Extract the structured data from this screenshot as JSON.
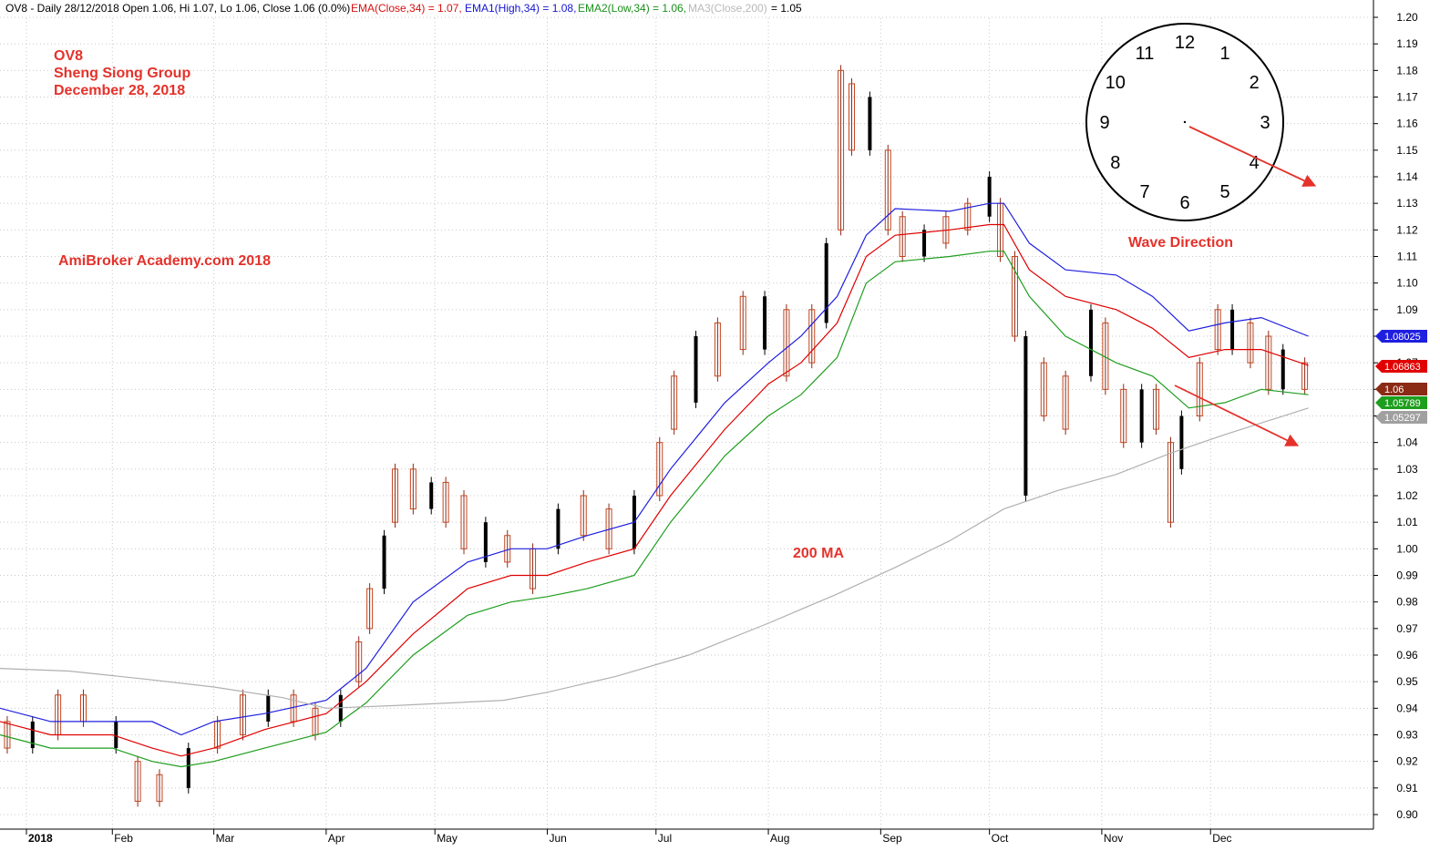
{
  "header": {
    "symbol_info": "OV8 - Daily 28/12/2018 Open 1.06, Hi 1.07, Lo 1.06, Close 1.06 (0.0%)",
    "ema_close": "EMA(Close,34) = 1.07,",
    "ema1_high": "EMA1(High,34) = 1.08,",
    "ema2_low": "EMA2(Low,34) = 1.06,",
    "ma3_close": "MA3(Close,200)",
    "ma3_value": "= 1.05"
  },
  "notes": {
    "ticker": "OV8",
    "company": "Sheng Siong Group",
    "date": "December 28, 2018",
    "watermark": "AmiBroker Academy.com  2018",
    "ma_label": "200 MA",
    "wave_label": "Wave Direction"
  },
  "clock": {
    "numbers": [
      "12",
      "1",
      "2",
      "3",
      "4",
      "5",
      "6",
      "7",
      "8",
      "9",
      "10",
      "11"
    ]
  },
  "badges": [
    {
      "text": "1.08025",
      "value": 1.08025,
      "color": "#1f1fe0"
    },
    {
      "text": "1.06863",
      "value": 1.06863,
      "color": "#e00000"
    },
    {
      "text": "1.06",
      "value": 1.06,
      "color": "#8b2a15"
    },
    {
      "text": "1.05789",
      "value": 1.05789,
      "color": "#1e9e1e"
    },
    {
      "text": "1.05297",
      "value": 1.05297,
      "color": "#a0a0a0"
    }
  ],
  "chart_data": {
    "type": "line",
    "y_axis": {
      "min": 0.9,
      "max": 1.2,
      "position": "right",
      "ticks": [
        "0.90",
        "0.91",
        "0.92",
        "0.93",
        "0.94",
        "0.95",
        "0.96",
        "0.97",
        "0.98",
        "0.99",
        "1.00",
        "1.01",
        "1.02",
        "1.03",
        "1.04",
        "1.05",
        "1.06",
        "1.07",
        "1.08",
        "1.09",
        "1.10",
        "1.11",
        "1.12",
        "1.13",
        "1.14",
        "1.15",
        "1.16",
        "1.17",
        "1.18",
        "1.19",
        "1.20"
      ]
    },
    "x_axis": {
      "start": "2018-01-01",
      "end": "2019-01-22",
      "months": [
        {
          "label": "2018",
          "date": "2018-01-01",
          "bold": true
        },
        {
          "label": "Feb",
          "date": "2018-02-01"
        },
        {
          "label": "Mar",
          "date": "2018-03-01"
        },
        {
          "label": "Apr",
          "date": "2018-04-01"
        },
        {
          "label": "May",
          "date": "2018-05-01"
        },
        {
          "label": "Jun",
          "date": "2018-06-01"
        },
        {
          "label": "Jul",
          "date": "2018-07-01"
        },
        {
          "label": "Aug",
          "date": "2018-08-01"
        },
        {
          "label": "Sep",
          "date": "2018-09-01"
        },
        {
          "label": "Oct",
          "date": "2018-10-01"
        },
        {
          "label": "Nov",
          "date": "2018-11-01"
        },
        {
          "label": "Dec",
          "date": "2018-12-01"
        }
      ]
    },
    "grid": true,
    "series": [
      {
        "name": "EMA1(High,34)",
        "color": "#1f1fe0",
        "points": [
          [
            "2018-01-01",
            0.94
          ],
          [
            "2018-01-15",
            0.935
          ],
          [
            "2018-02-01",
            0.935
          ],
          [
            "2018-02-12",
            0.935
          ],
          [
            "2018-02-20",
            0.93
          ],
          [
            "2018-03-01",
            0.935
          ],
          [
            "2018-03-15",
            0.938
          ],
          [
            "2018-04-01",
            0.943
          ],
          [
            "2018-04-12",
            0.955
          ],
          [
            "2018-04-25",
            0.98
          ],
          [
            "2018-05-10",
            0.995
          ],
          [
            "2018-05-22",
            1.0
          ],
          [
            "2018-06-01",
            1.0
          ],
          [
            "2018-06-12",
            1.005
          ],
          [
            "2018-06-25",
            1.01
          ],
          [
            "2018-07-05",
            1.03
          ],
          [
            "2018-07-20",
            1.055
          ],
          [
            "2018-08-01",
            1.07
          ],
          [
            "2018-08-10",
            1.08
          ],
          [
            "2018-08-20",
            1.095
          ],
          [
            "2018-08-28",
            1.118
          ],
          [
            "2018-09-05",
            1.128
          ],
          [
            "2018-09-20",
            1.127
          ],
          [
            "2018-10-01",
            1.13
          ],
          [
            "2018-10-05",
            1.13
          ],
          [
            "2018-10-12",
            1.115
          ],
          [
            "2018-10-22",
            1.105
          ],
          [
            "2018-11-05",
            1.103
          ],
          [
            "2018-11-15",
            1.095
          ],
          [
            "2018-11-25",
            1.082
          ],
          [
            "2018-12-05",
            1.085
          ],
          [
            "2018-12-15",
            1.087
          ],
          [
            "2018-12-28",
            1.08
          ]
        ]
      },
      {
        "name": "EMA(Close,34)",
        "color": "#e00000",
        "points": [
          [
            "2018-01-01",
            0.935
          ],
          [
            "2018-01-15",
            0.93
          ],
          [
            "2018-02-01",
            0.93
          ],
          [
            "2018-02-12",
            0.925
          ],
          [
            "2018-02-20",
            0.922
          ],
          [
            "2018-03-01",
            0.925
          ],
          [
            "2018-03-15",
            0.932
          ],
          [
            "2018-04-01",
            0.938
          ],
          [
            "2018-04-12",
            0.95
          ],
          [
            "2018-04-25",
            0.968
          ],
          [
            "2018-05-10",
            0.985
          ],
          [
            "2018-05-22",
            0.99
          ],
          [
            "2018-06-01",
            0.99
          ],
          [
            "2018-06-12",
            0.995
          ],
          [
            "2018-06-25",
            1.0
          ],
          [
            "2018-07-05",
            1.02
          ],
          [
            "2018-07-20",
            1.045
          ],
          [
            "2018-08-01",
            1.062
          ],
          [
            "2018-08-10",
            1.07
          ],
          [
            "2018-08-20",
            1.085
          ],
          [
            "2018-08-28",
            1.11
          ],
          [
            "2018-09-05",
            1.118
          ],
          [
            "2018-09-20",
            1.12
          ],
          [
            "2018-10-01",
            1.122
          ],
          [
            "2018-10-05",
            1.122
          ],
          [
            "2018-10-12",
            1.105
          ],
          [
            "2018-10-22",
            1.095
          ],
          [
            "2018-11-05",
            1.09
          ],
          [
            "2018-11-15",
            1.083
          ],
          [
            "2018-11-25",
            1.072
          ],
          [
            "2018-12-05",
            1.075
          ],
          [
            "2018-12-15",
            1.075
          ],
          [
            "2018-12-28",
            1.069
          ]
        ]
      },
      {
        "name": "EMA2(Low,34)",
        "color": "#1e9e1e",
        "points": [
          [
            "2018-01-01",
            0.93
          ],
          [
            "2018-01-15",
            0.925
          ],
          [
            "2018-02-01",
            0.925
          ],
          [
            "2018-02-12",
            0.92
          ],
          [
            "2018-02-20",
            0.918
          ],
          [
            "2018-03-01",
            0.92
          ],
          [
            "2018-03-15",
            0.925
          ],
          [
            "2018-04-01",
            0.931
          ],
          [
            "2018-04-12",
            0.942
          ],
          [
            "2018-04-25",
            0.96
          ],
          [
            "2018-05-10",
            0.975
          ],
          [
            "2018-05-22",
            0.98
          ],
          [
            "2018-06-01",
            0.982
          ],
          [
            "2018-06-12",
            0.985
          ],
          [
            "2018-06-25",
            0.99
          ],
          [
            "2018-07-05",
            1.01
          ],
          [
            "2018-07-20",
            1.035
          ],
          [
            "2018-08-01",
            1.05
          ],
          [
            "2018-08-10",
            1.058
          ],
          [
            "2018-08-20",
            1.072
          ],
          [
            "2018-08-28",
            1.1
          ],
          [
            "2018-09-05",
            1.108
          ],
          [
            "2018-09-20",
            1.11
          ],
          [
            "2018-10-01",
            1.112
          ],
          [
            "2018-10-05",
            1.112
          ],
          [
            "2018-10-12",
            1.095
          ],
          [
            "2018-10-22",
            1.08
          ],
          [
            "2018-11-05",
            1.07
          ],
          [
            "2018-11-15",
            1.065
          ],
          [
            "2018-11-25",
            1.053
          ],
          [
            "2018-12-05",
            1.055
          ],
          [
            "2018-12-15",
            1.06
          ],
          [
            "2018-12-28",
            1.058
          ]
        ]
      },
      {
        "name": "MA3(Close,200)",
        "color": "#b0b0b0",
        "points": [
          [
            "2018-01-01",
            0.955
          ],
          [
            "2018-01-20",
            0.954
          ],
          [
            "2018-02-10",
            0.951
          ],
          [
            "2018-03-01",
            0.948
          ],
          [
            "2018-03-20",
            0.944
          ],
          [
            "2018-04-01",
            0.94
          ],
          [
            "2018-04-20",
            0.941
          ],
          [
            "2018-05-20",
            0.943
          ],
          [
            "2018-06-01",
            0.946
          ],
          [
            "2018-06-20",
            0.952
          ],
          [
            "2018-07-10",
            0.96
          ],
          [
            "2018-08-01",
            0.972
          ],
          [
            "2018-08-20",
            0.983
          ],
          [
            "2018-09-05",
            0.993
          ],
          [
            "2018-09-20",
            1.003
          ],
          [
            "2018-10-05",
            1.015
          ],
          [
            "2018-10-20",
            1.022
          ],
          [
            "2018-11-05",
            1.028
          ],
          [
            "2018-11-20",
            1.036
          ],
          [
            "2018-12-05",
            1.043
          ],
          [
            "2018-12-28",
            1.053
          ]
        ]
      }
    ],
    "price_bars": [
      [
        "2018-01-03",
        0.935,
        0.925
      ],
      [
        "2018-01-10",
        0.935,
        0.925
      ],
      [
        "2018-01-17",
        0.945,
        0.93
      ],
      [
        "2018-01-24",
        0.945,
        0.935
      ],
      [
        "2018-02-02",
        0.935,
        0.925
      ],
      [
        "2018-02-08",
        0.92,
        0.905
      ],
      [
        "2018-02-14",
        0.915,
        0.905
      ],
      [
        "2018-02-22",
        0.925,
        0.91
      ],
      [
        "2018-03-02",
        0.935,
        0.925
      ],
      [
        "2018-03-09",
        0.945,
        0.93
      ],
      [
        "2018-03-16",
        0.945,
        0.935
      ],
      [
        "2018-03-23",
        0.945,
        0.935
      ],
      [
        "2018-03-29",
        0.94,
        0.93
      ],
      [
        "2018-04-05",
        0.945,
        0.935
      ],
      [
        "2018-04-10",
        0.965,
        0.95
      ],
      [
        "2018-04-13",
        0.985,
        0.97
      ],
      [
        "2018-04-17",
        1.005,
        0.985
      ],
      [
        "2018-04-20",
        1.03,
        1.01
      ],
      [
        "2018-04-25",
        1.03,
        1.015
      ],
      [
        "2018-04-30",
        1.025,
        1.015
      ],
      [
        "2018-05-04",
        1.025,
        1.01
      ],
      [
        "2018-05-09",
        1.02,
        1.0
      ],
      [
        "2018-05-15",
        1.01,
        0.995
      ],
      [
        "2018-05-21",
        1.005,
        0.995
      ],
      [
        "2018-05-28",
        1.0,
        0.985
      ],
      [
        "2018-06-04",
        1.015,
        1.0
      ],
      [
        "2018-06-11",
        1.02,
        1.005
      ],
      [
        "2018-06-18",
        1.015,
        1.0
      ],
      [
        "2018-06-25",
        1.02,
        1.0
      ],
      [
        "2018-07-02",
        1.04,
        1.02
      ],
      [
        "2018-07-06",
        1.065,
        1.045
      ],
      [
        "2018-07-12",
        1.08,
        1.055
      ],
      [
        "2018-07-18",
        1.085,
        1.065
      ],
      [
        "2018-07-25",
        1.095,
        1.075
      ],
      [
        "2018-07-31",
        1.095,
        1.075
      ],
      [
        "2018-08-06",
        1.09,
        1.065
      ],
      [
        "2018-08-13",
        1.09,
        1.07
      ],
      [
        "2018-08-17",
        1.115,
        1.085
      ],
      [
        "2018-08-21",
        1.18,
        1.12
      ],
      [
        "2018-08-24",
        1.175,
        1.15
      ],
      [
        "2018-08-29",
        1.17,
        1.15
      ],
      [
        "2018-09-03",
        1.15,
        1.12
      ],
      [
        "2018-09-07",
        1.125,
        1.11
      ],
      [
        "2018-09-13",
        1.12,
        1.11
      ],
      [
        "2018-09-19",
        1.125,
        1.115
      ],
      [
        "2018-09-25",
        1.13,
        1.12
      ],
      [
        "2018-10-01",
        1.14,
        1.125
      ],
      [
        "2018-10-04",
        1.13,
        1.11
      ],
      [
        "2018-10-08",
        1.11,
        1.08
      ],
      [
        "2018-10-11",
        1.08,
        1.02
      ],
      [
        "2018-10-16",
        1.07,
        1.05
      ],
      [
        "2018-10-22",
        1.065,
        1.045
      ],
      [
        "2018-10-29",
        1.09,
        1.065
      ],
      [
        "2018-11-02",
        1.085,
        1.06
      ],
      [
        "2018-11-07",
        1.06,
        1.04
      ],
      [
        "2018-11-12",
        1.06,
        1.04
      ],
      [
        "2018-11-16",
        1.06,
        1.045
      ],
      [
        "2018-11-20",
        1.04,
        1.01
      ],
      [
        "2018-11-23",
        1.05,
        1.03
      ],
      [
        "2018-11-28",
        1.07,
        1.05
      ],
      [
        "2018-12-03",
        1.09,
        1.075
      ],
      [
        "2018-12-07",
        1.09,
        1.075
      ],
      [
        "2018-12-12",
        1.085,
        1.07
      ],
      [
        "2018-12-17",
        1.08,
        1.06
      ],
      [
        "2018-12-21",
        1.075,
        1.06
      ],
      [
        "2018-12-27",
        1.07,
        1.06
      ]
    ]
  }
}
